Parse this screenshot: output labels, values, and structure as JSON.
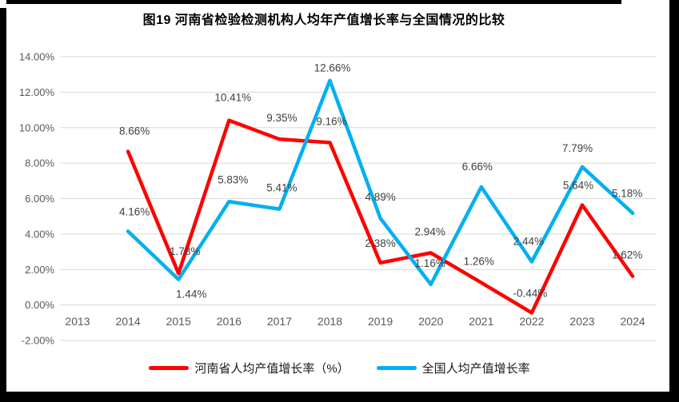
{
  "chart": {
    "title": "图19  河南省检验检测机构人均年产值增长率与全国情况的比较"
  },
  "colors": {
    "henan_line": "#FF0000",
    "national_line": "#00B0F0",
    "gridline": "#D9D9D9",
    "axis_text": "#595959",
    "data_label": "#3F3F3F",
    "frame": "#000000"
  },
  "chart_data": {
    "type": "line",
    "title": "图19  河南省检验检测机构人均年产值增长率与全国情况的比较",
    "categories": [
      "2013",
      "2014",
      "2015",
      "2016",
      "2017",
      "2018",
      "2019",
      "2020",
      "2021",
      "2022",
      "2023",
      "2024"
    ],
    "series": [
      {
        "name": "河南省人均产值增长率（%）",
        "color": "#FF0000",
        "values": [
          null,
          8.66,
          1.78,
          10.41,
          9.35,
          9.16,
          2.38,
          2.94,
          1.26,
          -0.44,
          5.64,
          1.62
        ],
        "label_offsets": [
          [
            0,
            0
          ],
          [
            8,
            -21
          ],
          [
            8,
            -23
          ],
          [
            5,
            -24
          ],
          [
            3,
            -22
          ],
          [
            2,
            -22
          ],
          [
            0,
            -20
          ],
          [
            -1,
            -22
          ],
          [
            -3,
            -22
          ],
          [
            -2,
            -20
          ],
          [
            -5,
            -20
          ],
          [
            -7,
            -22
          ]
        ]
      },
      {
        "name": "全国人均产值增长率",
        "color": "#00B0F0",
        "values": [
          null,
          4.16,
          1.44,
          5.83,
          5.41,
          12.66,
          4.89,
          1.16,
          6.66,
          2.44,
          7.79,
          5.18
        ],
        "label_offsets": [
          [
            0,
            0
          ],
          [
            8,
            -20
          ],
          [
            16,
            23
          ],
          [
            5,
            -23
          ],
          [
            3,
            -22
          ],
          [
            3,
            -11
          ],
          [
            0,
            -22
          ],
          [
            -1,
            -22
          ],
          [
            -5,
            -21
          ],
          [
            -4,
            -21
          ],
          [
            -6,
            -19
          ],
          [
            -7,
            -20
          ]
        ]
      }
    ],
    "xlabel": "",
    "ylabel": "",
    "ylim": [
      -2,
      14
    ],
    "ytick_step": 2,
    "ytick_labels": [
      "14.00%",
      "12.00%",
      "10.00%",
      "8.00%",
      "6.00%",
      "4.00%",
      "2.00%",
      "0.00%",
      "-2.00%"
    ],
    "grid": true,
    "legend_position": "bottom",
    "data_labels_shown": true
  }
}
